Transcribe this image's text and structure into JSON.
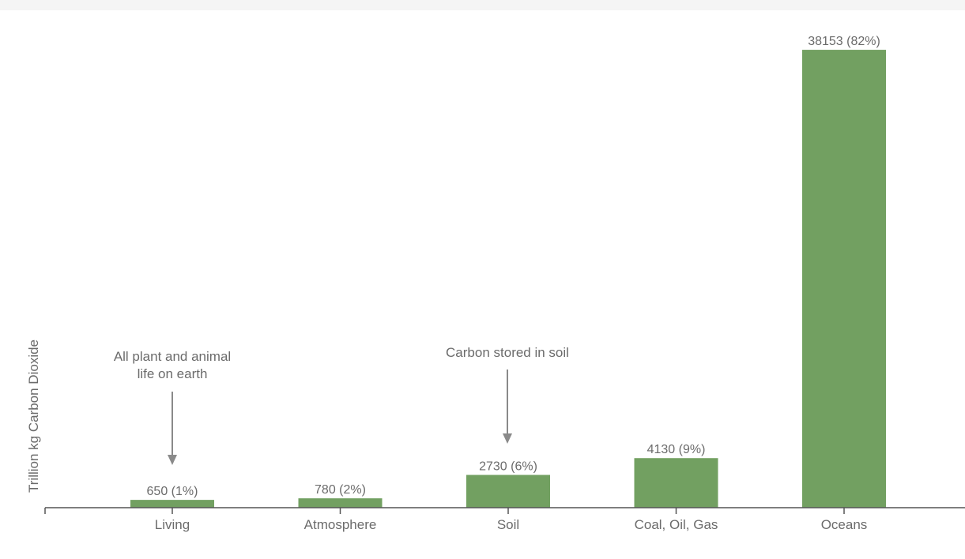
{
  "chart_data": {
    "type": "bar",
    "title": "",
    "xlabel": "",
    "ylabel": "Trillion kg Carbon Dioxide",
    "categories": [
      "Living",
      "Atmosphere",
      "Soil",
      "Coal, Oil, Gas",
      "Oceans"
    ],
    "values": [
      650,
      780,
      2730,
      4130,
      38153
    ],
    "data_labels": [
      "650 (1%)",
      "780 (2%)",
      "2730 (6%)",
      "4130 (9%)",
      "38153 (82%)"
    ],
    "ylim": [
      0,
      40000
    ],
    "grid": false,
    "legend": "none",
    "bar_color": "#72a061",
    "annotations": [
      {
        "category": "Living",
        "lines": [
          "All plant and animal",
          "life on earth"
        ]
      },
      {
        "category": "Soil",
        "lines": [
          "Carbon stored in soil"
        ]
      }
    ]
  }
}
